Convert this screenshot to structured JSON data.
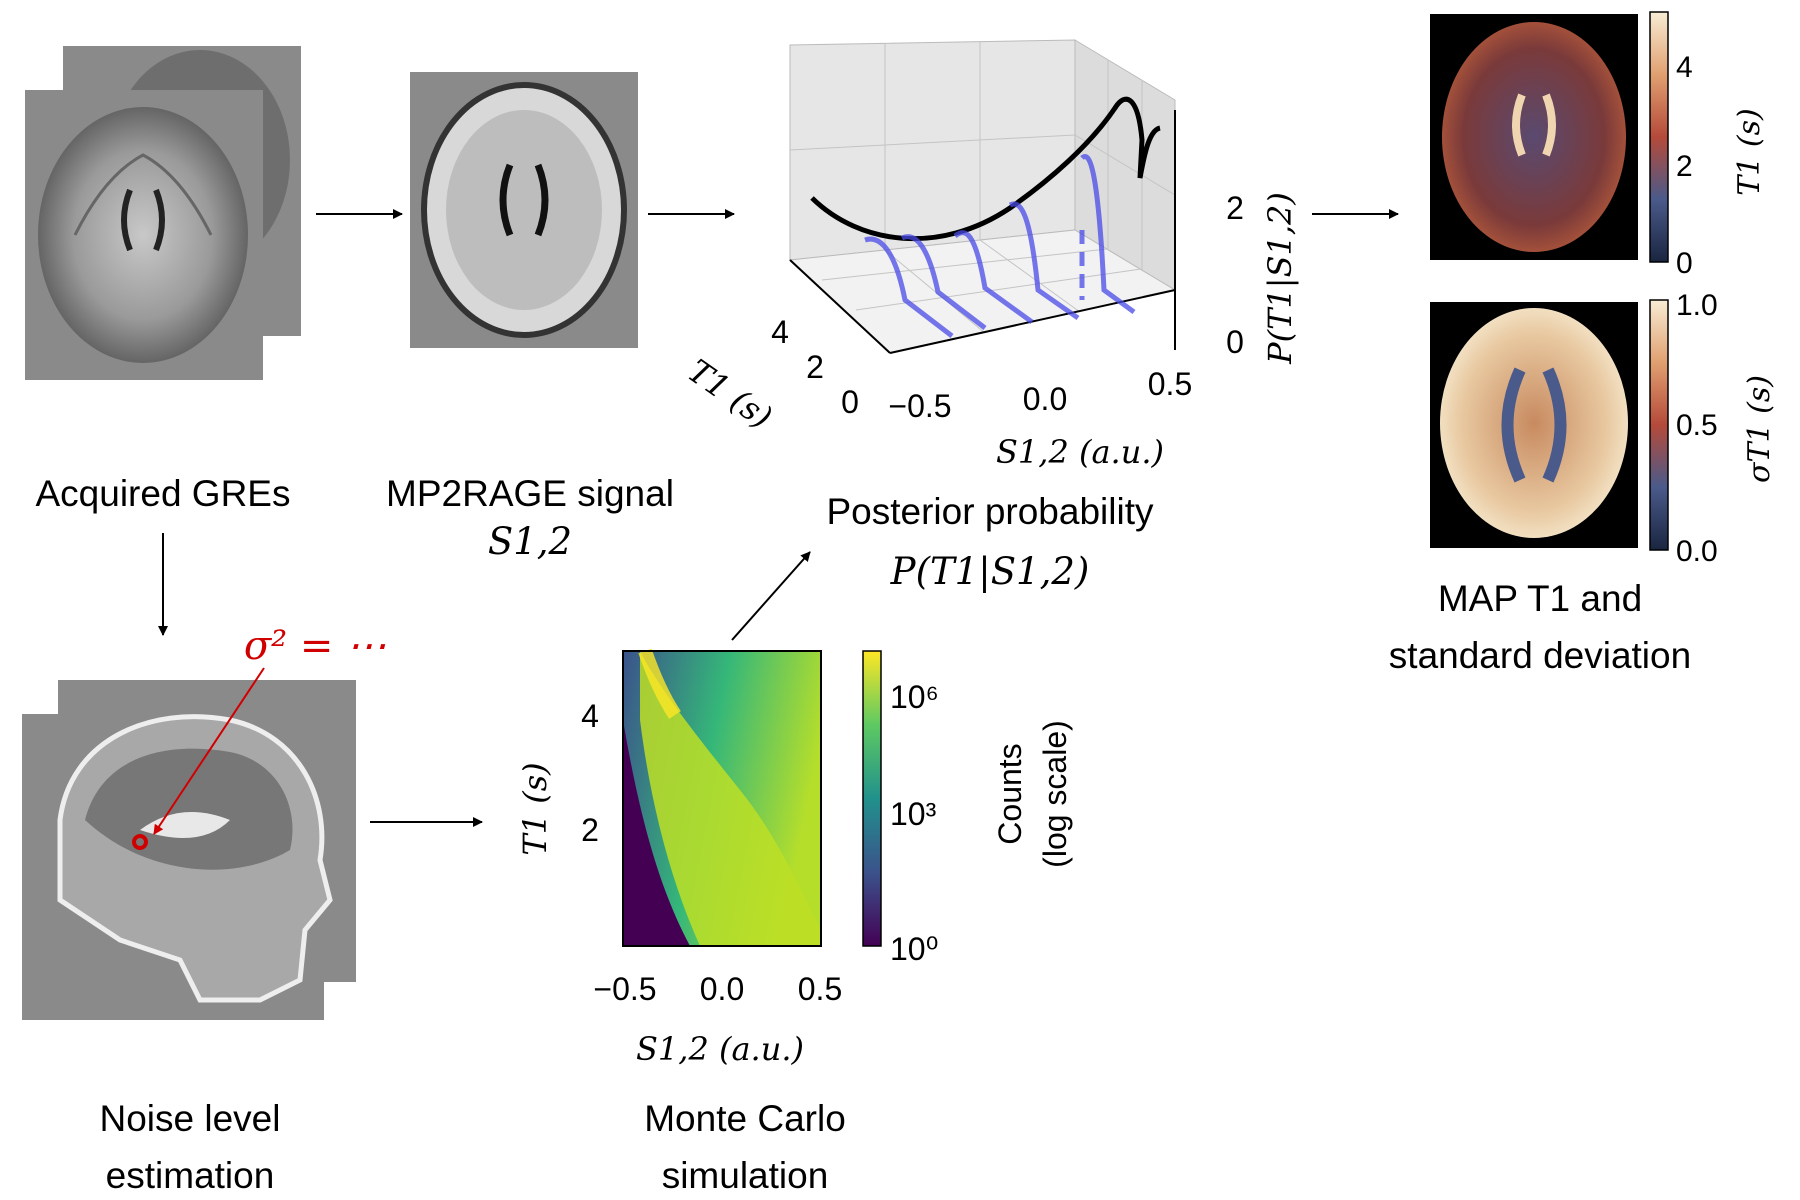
{
  "labels": {
    "acquired_gres": "Acquired GREs",
    "mp2rage_signal": "MP2RAGE signal",
    "mp2rage_symbol": "S1,2",
    "posterior_title": "Posterior probability",
    "posterior_symbol": "P(T1|S1,2)",
    "map_line1": "MAP T1 and",
    "map_line2": "standard deviation",
    "noise_line1": "Noise level",
    "noise_line2": "estimation",
    "mc_line1": "Monte Carlo",
    "mc_line2": "simulation",
    "sigma_annotation": "σ² = ⋯"
  },
  "posterior_plot": {
    "x_label": "S1,2 (a.u.)",
    "x_ticks": [
      "−0.5",
      "0.0",
      "0.5"
    ],
    "y_label": "T1 (s)",
    "y_ticks": [
      "0",
      "2",
      "4"
    ],
    "z_label": "P(T1|S1,2)",
    "z_ticks": [
      "0",
      "2"
    ],
    "curve_color": "#000000",
    "posterior_color": "#4a4ae8"
  },
  "t1_map": {
    "colorbar_label": "T1 (s)",
    "colorbar_ticks": [
      "0",
      "2",
      "4"
    ]
  },
  "sd_map": {
    "colorbar_label": "σT1 (s)",
    "colorbar_ticks": [
      "0.0",
      "0.5",
      "1.0"
    ]
  },
  "monte_carlo": {
    "x_label": "S1,2 (a.u.)",
    "x_ticks": [
      "−0.5",
      "0.0",
      "0.5"
    ],
    "y_label": "T1 (s)",
    "y_ticks": [
      "2",
      "4"
    ],
    "colorbar_label_1": "Counts",
    "colorbar_label_2": "(log scale)",
    "colorbar_ticks": [
      "10⁰",
      "10³",
      "10⁶"
    ]
  },
  "colors": {
    "viridis": [
      "#440154",
      "#3b528b",
      "#21918c",
      "#5ec962",
      "#fde725"
    ],
    "brain_gray": "#888888",
    "annotation_red": "#d10000"
  }
}
